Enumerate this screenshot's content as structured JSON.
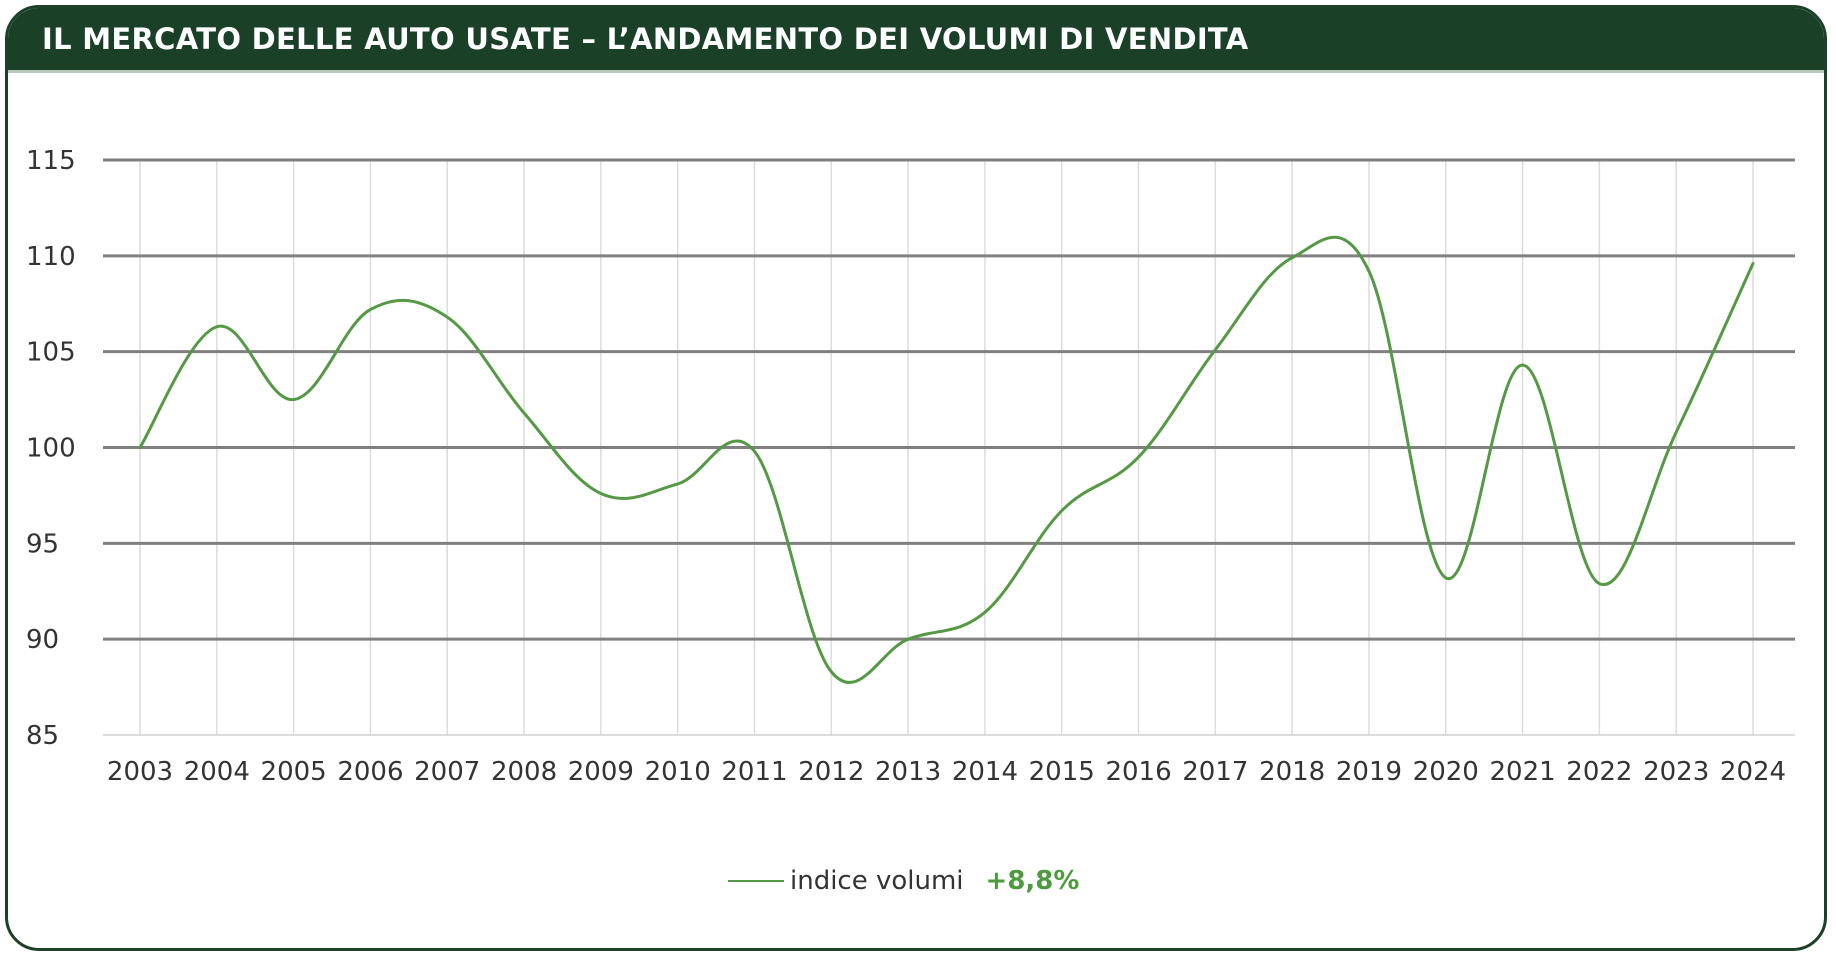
{
  "header": {
    "title": "IL MERCATO DELLE AUTO USATE – L’ANDAMENTO DEI VOLUMI DI VENDITA"
  },
  "colors": {
    "header_bg": "#1a4027",
    "series": "#559945",
    "accent": "#4e9a3f",
    "grid": "#808080"
  },
  "legend": {
    "label": "indice volumi",
    "change": "+8,8%"
  },
  "chart_data": {
    "type": "line",
    "title": "IL MERCATO DELLE AUTO USATE – L’ANDAMENTO DEI VOLUMI DI VENDITA",
    "xlabel": "",
    "ylabel": "",
    "ylim": [
      85,
      115
    ],
    "yticks": [
      85,
      90,
      95,
      100,
      105,
      110,
      115
    ],
    "grid": true,
    "legend_position": "bottom",
    "categories": [
      "2003",
      "2004",
      "2005",
      "2006",
      "2007",
      "2008",
      "2009",
      "2010",
      "2011",
      "2012",
      "2013",
      "2014",
      "2015",
      "2016",
      "2017",
      "2018",
      "2019",
      "2020",
      "2021",
      "2022",
      "2023",
      "2024"
    ],
    "series": [
      {
        "name": "indice volumi",
        "values": [
          100.0,
          106.3,
          102.5,
          107.2,
          106.8,
          101.8,
          97.6,
          98.1,
          99.8,
          88.3,
          90.0,
          91.4,
          96.7,
          99.5,
          105.1,
          109.9,
          109.2,
          93.2,
          104.3,
          92.9,
          100.8,
          109.6
        ]
      }
    ]
  }
}
